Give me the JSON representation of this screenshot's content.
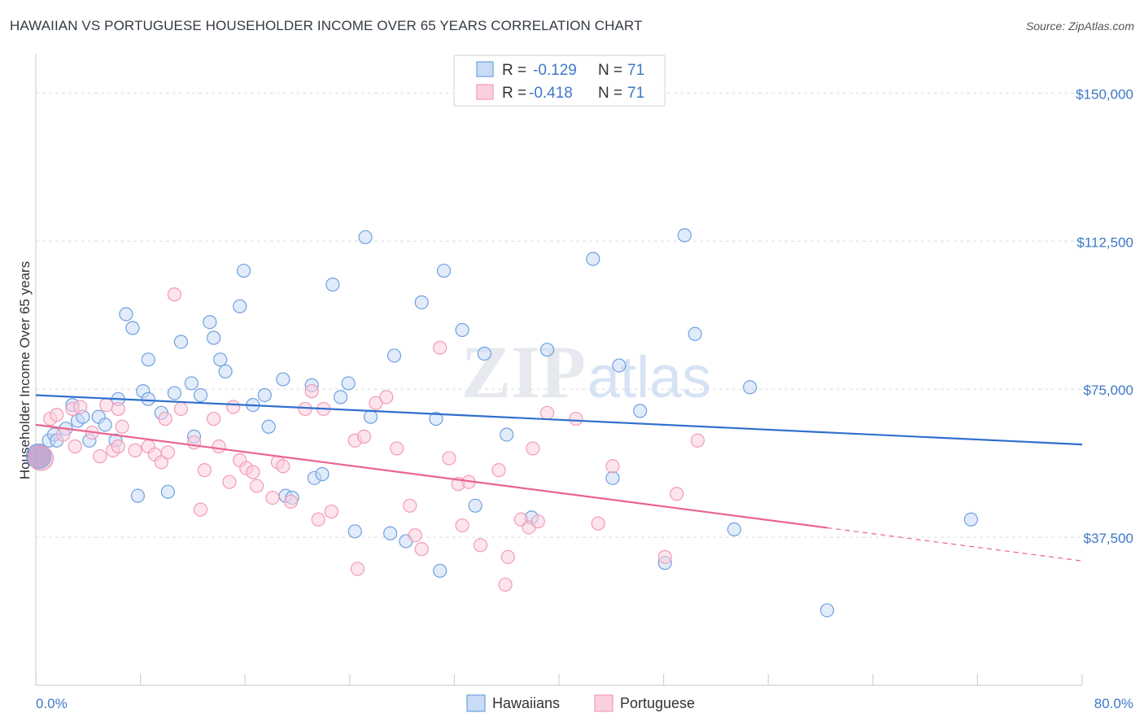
{
  "title": "HAWAIIAN VS PORTUGUESE HOUSEHOLDER INCOME OVER 65 YEARS CORRELATION CHART",
  "source": "Source: ZipAtlas.com",
  "colors": {
    "hawaiians": "#6fa0e0",
    "portuguese": "#f29bb6",
    "hawaiians_line": "#2f6fcf",
    "portuguese_line": "#e8648f",
    "axis_label": "#3f78c6"
  },
  "legend": {
    "rows": [
      {
        "r_label": "R =",
        "r_value": "-0.129",
        "n_label": "N =",
        "n_value": "71"
      },
      {
        "r_label": "R =",
        "r_value": "-0.418",
        "n_label": "N =",
        "n_value": "71"
      }
    ]
  },
  "bottom_legend": [
    "Hawaiians",
    "Portuguese"
  ],
  "watermark": "ZIPatlas",
  "chart_data": {
    "type": "scatter",
    "xlabel": "",
    "ylabel": "Householder Income Over 65 years",
    "xlim": [
      0,
      80
    ],
    "ylim": [
      0,
      157500
    ],
    "x_tick_labels": [
      "0.0%",
      "80.0%"
    ],
    "y_tick_labels": [
      "$37,500",
      "$75,000",
      "$112,500",
      "$150,000"
    ],
    "y_ticks": [
      37500,
      75000,
      112500,
      150000
    ],
    "grid": true,
    "series": [
      {
        "name": "Hawaiians",
        "trend": {
          "x": [
            0,
            80
          ],
          "y": [
            73500,
            61000
          ]
        },
        "points": [
          [
            0.2,
            58000
          ],
          [
            1.0,
            62000
          ],
          [
            1.4,
            63500
          ],
          [
            1.6,
            62000
          ],
          [
            2.3,
            65000
          ],
          [
            2.8,
            71000
          ],
          [
            3.2,
            67000
          ],
          [
            3.6,
            68000
          ],
          [
            4.1,
            62000
          ],
          [
            4.8,
            68000
          ],
          [
            5.3,
            66000
          ],
          [
            6.1,
            62000
          ],
          [
            6.3,
            72500
          ],
          [
            6.9,
            94000
          ],
          [
            7.4,
            90500
          ],
          [
            7.8,
            48000
          ],
          [
            8.2,
            74500
          ],
          [
            8.6,
            82500
          ],
          [
            8.6,
            72500
          ],
          [
            9.6,
            69000
          ],
          [
            10.1,
            49000
          ],
          [
            10.6,
            74000
          ],
          [
            11.1,
            87000
          ],
          [
            11.9,
            76500
          ],
          [
            12.1,
            63000
          ],
          [
            12.6,
            73500
          ],
          [
            13.3,
            92000
          ],
          [
            13.6,
            88000
          ],
          [
            14.1,
            82500
          ],
          [
            14.5,
            79500
          ],
          [
            15.6,
            96000
          ],
          [
            15.9,
            105000
          ],
          [
            16.6,
            71000
          ],
          [
            17.5,
            73500
          ],
          [
            17.8,
            65500
          ],
          [
            18.9,
            77500
          ],
          [
            19.1,
            48000
          ],
          [
            19.6,
            47500
          ],
          [
            21.1,
            76000
          ],
          [
            21.3,
            52500
          ],
          [
            21.9,
            53500
          ],
          [
            22.7,
            101500
          ],
          [
            23.3,
            73000
          ],
          [
            23.9,
            76500
          ],
          [
            24.4,
            39000
          ],
          [
            25.2,
            113500
          ],
          [
            25.6,
            68000
          ],
          [
            27.1,
            38500
          ],
          [
            27.4,
            83500
          ],
          [
            28.3,
            36500
          ],
          [
            29.5,
            97000
          ],
          [
            30.6,
            67500
          ],
          [
            30.9,
            29000
          ],
          [
            31.2,
            105000
          ],
          [
            32.6,
            90000
          ],
          [
            33.6,
            45500
          ],
          [
            34.3,
            84000
          ],
          [
            36.0,
            63500
          ],
          [
            37.9,
            42500
          ],
          [
            39.1,
            85000
          ],
          [
            42.6,
            108000
          ],
          [
            44.1,
            52500
          ],
          [
            44.6,
            81000
          ],
          [
            46.2,
            69500
          ],
          [
            48.1,
            31000
          ],
          [
            49.6,
            114000
          ],
          [
            50.4,
            89000
          ],
          [
            53.4,
            39500
          ],
          [
            54.6,
            75500
          ],
          [
            60.5,
            19000
          ],
          [
            71.5,
            42000
          ]
        ]
      },
      {
        "name": "Portuguese",
        "trend": {
          "x": [
            0,
            80
          ],
          "y": [
            66000,
            31500
          ]
        },
        "points": [
          [
            0.4,
            57500
          ],
          [
            1.1,
            67500
          ],
          [
            1.6,
            68500
          ],
          [
            2.1,
            63500
          ],
          [
            2.8,
            70000
          ],
          [
            3.0,
            60500
          ],
          [
            3.4,
            70500
          ],
          [
            4.3,
            64000
          ],
          [
            4.9,
            58000
          ],
          [
            5.4,
            71000
          ],
          [
            5.9,
            59500
          ],
          [
            6.3,
            70000
          ],
          [
            6.3,
            60500
          ],
          [
            6.6,
            65500
          ],
          [
            7.6,
            59500
          ],
          [
            8.6,
            60500
          ],
          [
            9.1,
            58500
          ],
          [
            9.6,
            56500
          ],
          [
            9.9,
            67500
          ],
          [
            10.1,
            59000
          ],
          [
            10.6,
            99000
          ],
          [
            11.1,
            70000
          ],
          [
            12.1,
            61500
          ],
          [
            12.6,
            44500
          ],
          [
            12.9,
            54500
          ],
          [
            13.6,
            67500
          ],
          [
            14.0,
            60500
          ],
          [
            14.8,
            51500
          ],
          [
            15.1,
            70500
          ],
          [
            15.6,
            57000
          ],
          [
            16.1,
            55000
          ],
          [
            16.6,
            54000
          ],
          [
            16.9,
            50500
          ],
          [
            18.1,
            47500
          ],
          [
            18.5,
            56500
          ],
          [
            18.9,
            55500
          ],
          [
            19.5,
            46500
          ],
          [
            20.6,
            70000
          ],
          [
            21.1,
            74500
          ],
          [
            21.6,
            42000
          ],
          [
            22.0,
            70000
          ],
          [
            22.6,
            44000
          ],
          [
            24.4,
            62000
          ],
          [
            24.6,
            29500
          ],
          [
            25.1,
            63000
          ],
          [
            26.0,
            71500
          ],
          [
            26.8,
            73000
          ],
          [
            27.6,
            60000
          ],
          [
            28.6,
            45500
          ],
          [
            29.0,
            38000
          ],
          [
            29.5,
            34500
          ],
          [
            30.9,
            85500
          ],
          [
            31.6,
            57500
          ],
          [
            32.3,
            51000
          ],
          [
            32.6,
            40500
          ],
          [
            33.1,
            51500
          ],
          [
            34.0,
            35500
          ],
          [
            35.4,
            54500
          ],
          [
            35.9,
            25500
          ],
          [
            36.1,
            32500
          ],
          [
            37.1,
            42000
          ],
          [
            37.7,
            40000
          ],
          [
            38.0,
            60000
          ],
          [
            38.4,
            41500
          ],
          [
            39.1,
            69000
          ],
          [
            41.3,
            67500
          ],
          [
            43.0,
            41000
          ],
          [
            44.1,
            55500
          ],
          [
            48.1,
            32500
          ],
          [
            49.0,
            48500
          ],
          [
            50.6,
            62000
          ]
        ]
      }
    ]
  }
}
